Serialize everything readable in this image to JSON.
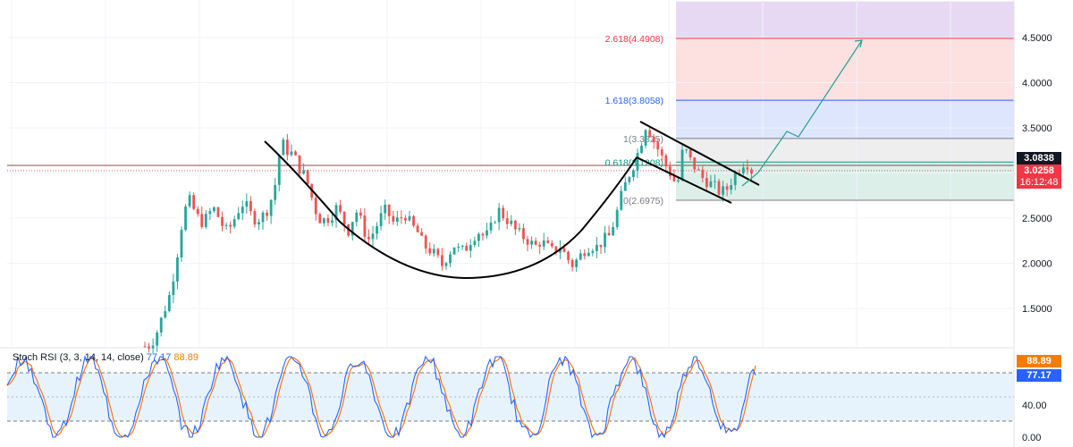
{
  "chart_data": [
    {
      "type": "candlestick",
      "title": "",
      "ylim": [
        1.1,
        4.9
      ],
      "y_ticks": [
        "1.5000",
        "2.0000",
        "2.5000",
        "3.0000",
        "3.5000",
        "4.0000",
        "4.5000"
      ],
      "y_tick_values": [
        1.5,
        2.0,
        2.5,
        3.0,
        3.5,
        4.0,
        4.5
      ],
      "grid": true,
      "current_price": "3.0258",
      "countdown": "16:12:48",
      "level_tag": "3.0838",
      "level_value": 3.0838,
      "bull_color": "#26a69a",
      "bear_color": "#ef5350",
      "fib_levels": [
        {
          "label": "2.618(4.4908)",
          "value": 4.4908,
          "color": "#f23645"
        },
        {
          "label": "1.618(3.8058)",
          "value": 3.8058,
          "color": "#2962ff"
        },
        {
          "label": "1(3.3825)",
          "value": 3.3825,
          "color": "#787b86"
        },
        {
          "label": "0.618(3.1208)",
          "value": 3.1208,
          "color": "#089981"
        },
        {
          "label": "0(2.6975)",
          "value": 2.6975,
          "color": "#787b86"
        }
      ],
      "fib_zones": [
        {
          "from": 4.4908,
          "to": 4.9,
          "color": "#e7d9f4"
        },
        {
          "from": 3.8058,
          "to": 4.4908,
          "color": "#fde0e0"
        },
        {
          "from": 3.3825,
          "to": 3.8058,
          "color": "#dde6fd"
        },
        {
          "from": 3.1208,
          "to": 3.3825,
          "color": "#eeeeef"
        },
        {
          "from": 2.6975,
          "to": 3.1208,
          "color": "#dcefe9"
        }
      ],
      "patterns": [
        "cup",
        "falling wedge",
        "projected path"
      ],
      "close_path": [
        1.08,
        1.1,
        1.25,
        1.45,
        1.65,
        2.0,
        2.45,
        2.72,
        2.58,
        2.45,
        2.5,
        2.62,
        2.5,
        2.35,
        2.42,
        2.58,
        2.68,
        2.55,
        2.48,
        2.52,
        2.62,
        2.85,
        3.35,
        3.25,
        3.2,
        3.05,
        2.95,
        2.72,
        2.5,
        2.48,
        2.52,
        2.62,
        2.48,
        2.35,
        2.6,
        2.45,
        2.25,
        2.35,
        2.5,
        2.6,
        2.45,
        2.48,
        2.55,
        2.42,
        2.35,
        2.2,
        2.15,
        2.08,
        1.98,
        2.1,
        2.2,
        2.12,
        2.18,
        2.3,
        2.35,
        2.28,
        2.4,
        2.6,
        2.52,
        2.45,
        2.35,
        2.3,
        2.25,
        2.18,
        2.25,
        2.18,
        2.12,
        2.2,
        2.08,
        1.98,
        2.05,
        2.15,
        2.2,
        2.18,
        2.25,
        2.3,
        2.5,
        2.75,
        2.95,
        3.1,
        3.3,
        3.55,
        3.38,
        3.25,
        3.1,
        2.98,
        2.85,
        3.3,
        3.15,
        3.05,
        2.95,
        2.9,
        2.85,
        2.78,
        2.82,
        2.95,
        3.05,
        3.15,
        3.03
      ]
    },
    {
      "type": "line",
      "name": "Stoch RSI",
      "legend_title": "Stoch RSI (3, 3, 14, 14, close)",
      "k_value": "77.17",
      "d_value": "88.89",
      "ylim": [
        0,
        100
      ],
      "y_ticks": [
        "40.00",
        "0.00"
      ],
      "y_tick_values": [
        40,
        0
      ],
      "bands": [
        20,
        80
      ],
      "series": [
        {
          "name": "K",
          "color": "#2962ff"
        },
        {
          "name": "D",
          "color": "#ff6d00"
        }
      ]
    }
  ]
}
